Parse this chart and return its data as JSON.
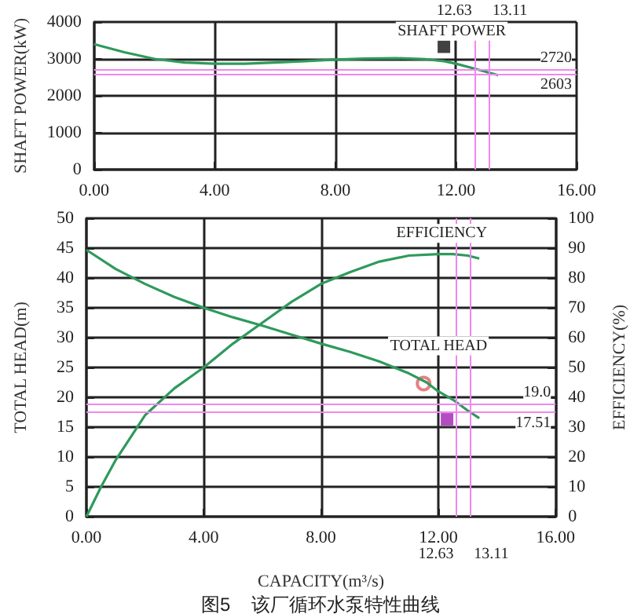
{
  "chart_data": [
    {
      "type": "line",
      "ylabel": "SHAFT POWER(kW)",
      "xlim": [
        0,
        16
      ],
      "ylim": [
        0,
        4000
      ],
      "xticks": [
        {
          "value": 0,
          "label": "0.00"
        },
        {
          "value": 4,
          "label": "4.00"
        },
        {
          "value": 8,
          "label": "8.00"
        },
        {
          "value": 12,
          "label": "12.00"
        },
        {
          "value": 16,
          "label": "16.00"
        }
      ],
      "yticks": [
        0,
        1000,
        2000,
        3000,
        4000
      ],
      "grid": true,
      "marker": "none",
      "series": [
        {
          "name": "SHAFT POWER",
          "color": "#2e9a5c",
          "x": [
            0,
            1,
            2,
            3,
            4,
            5,
            6,
            7,
            8,
            9,
            10,
            11,
            11.6,
            12,
            12.5,
            13,
            13.4
          ],
          "values": [
            3400,
            3180,
            3000,
            2900,
            2870,
            2870,
            2900,
            2940,
            2980,
            3010,
            3020,
            2990,
            2940,
            2870,
            2760,
            2650,
            2560
          ]
        },
        {
          "type": "scatter",
          "marker": "square",
          "color": "#111111",
          "x": [
            11.6
          ],
          "values": [
            3330
          ]
        }
      ],
      "ref_lines": [
        {
          "axis": "x",
          "value": 12.63,
          "label": "12.63",
          "color": "#ee88ee"
        },
        {
          "axis": "x",
          "value": 13.11,
          "label": "13.11",
          "color": "#ee88ee"
        },
        {
          "axis": "y",
          "value": 2720,
          "label": "2720",
          "color": "#ee88ee"
        },
        {
          "axis": "y",
          "value": 2603,
          "label": "2603",
          "color": "#ee88ee"
        }
      ]
    },
    {
      "type": "line",
      "xlabel": "CAPACITY(m³/s)",
      "ylabel": "TOTAL HEAD(m)",
      "y2label": "EFFICIENCY(%)",
      "xlim": [
        0,
        16
      ],
      "ylim": [
        0,
        50
      ],
      "y2lim": [
        0,
        100
      ],
      "xticks": [
        {
          "value": 0,
          "label": "0.00"
        },
        {
          "value": 4,
          "label": "4.00"
        },
        {
          "value": 8,
          "label": "8.00"
        },
        {
          "value": 12,
          "label": "12.00"
        },
        {
          "value": 16,
          "label": "16.00"
        }
      ],
      "yticks": [
        0,
        5,
        10,
        15,
        20,
        25,
        30,
        35,
        40,
        45,
        50
      ],
      "y2ticks": [
        0,
        10,
        20,
        30,
        40,
        50,
        60,
        70,
        80,
        90,
        100
      ],
      "grid": true,
      "marker": "none",
      "series": [
        {
          "name": "EFFICIENCY",
          "axis": "y2",
          "color": "#2e9a5c",
          "x": [
            0,
            0.5,
            1,
            2,
            3,
            4,
            5,
            6,
            7,
            8,
            9,
            10,
            11,
            12,
            12.5,
            13,
            13.4
          ],
          "values": [
            0,
            10,
            19,
            34,
            43,
            50,
            58,
            65,
            72,
            78,
            82,
            85.5,
            87.5,
            88,
            88,
            87.5,
            86.5
          ]
        },
        {
          "name": "TOTAL HEAD",
          "color": "#2e9a5c",
          "x": [
            0,
            1,
            2,
            3,
            4,
            5,
            6,
            7,
            8,
            9,
            10,
            11,
            11.6,
            12,
            12.5,
            13,
            13.4
          ],
          "values": [
            44.7,
            41.5,
            39,
            36.8,
            35,
            33.4,
            32,
            30.5,
            29,
            27.6,
            26,
            24,
            22.5,
            21,
            19.6,
            17.8,
            16.5
          ]
        },
        {
          "type": "scatter",
          "marker": "circle",
          "color": "#e06060",
          "x": [
            11.5
          ],
          "values": [
            22.3
          ]
        },
        {
          "type": "scatter",
          "marker": "square",
          "color": "#a020b0",
          "x": [
            12.3
          ],
          "values": [
            16.3
          ]
        }
      ],
      "ref_lines": [
        {
          "axis": "x",
          "value": 12.63,
          "label": "12.63",
          "color": "#ee88ee"
        },
        {
          "axis": "x",
          "value": 13.11,
          "label": "13.11",
          "color": "#ee88ee"
        },
        {
          "axis": "y",
          "value": 19.0,
          "label": "19.0",
          "color": "#ee88ee"
        },
        {
          "axis": "y",
          "value": 17.51,
          "label": "17.51",
          "color": "#ee88ee"
        }
      ],
      "annotations": [
        "图5    该厂循环水泵特性曲线"
      ]
    }
  ]
}
